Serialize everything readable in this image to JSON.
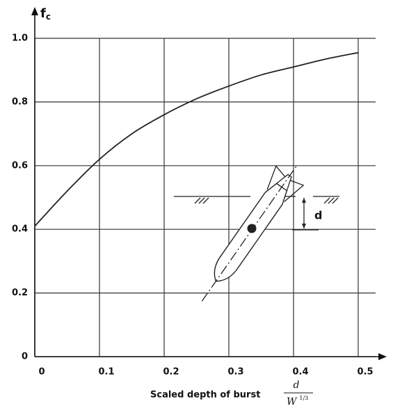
{
  "chart_data": {
    "type": "line",
    "y_label": {
      "main": "f",
      "sub": "c"
    },
    "x_label": "Scaled depth of burst",
    "x_label_fraction": {
      "numerator": "d",
      "denominator": "W",
      "exponent": "1/3"
    },
    "annotation": "d",
    "x": [
      0,
      0.05,
      0.1,
      0.15,
      0.2,
      0.25,
      0.3,
      0.35,
      0.4,
      0.45,
      0.5
    ],
    "values": [
      0.41,
      0.52,
      0.62,
      0.7,
      0.76,
      0.81,
      0.85,
      0.885,
      0.91,
      0.935,
      0.955
    ],
    "color": "#222222",
    "xlim": [
      0,
      0.5
    ],
    "ylim": [
      0,
      1
    ],
    "xticks": [
      0,
      0.1,
      0.2,
      0.3,
      0.4,
      0.5
    ],
    "yticks": [
      0,
      0.2,
      0.4,
      0.6,
      {
        "value": 1,
        "label": "1.0"
      },
      0.8
    ],
    "grid": true
  }
}
